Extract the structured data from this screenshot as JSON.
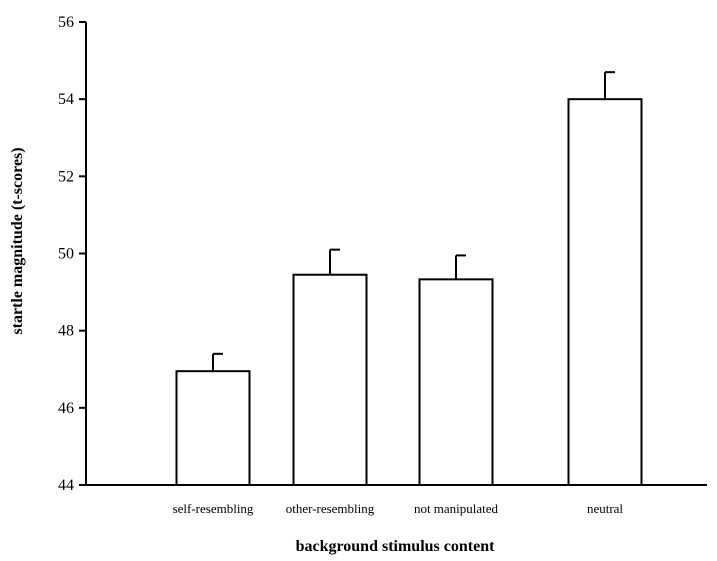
{
  "chart_data": {
    "type": "bar",
    "title": "",
    "xlabel": "background stimulus content",
    "ylabel": "startle magnitude (t-scores)",
    "categories": [
      "self-resembling",
      "other-resembling",
      "not manipulated",
      "neutral"
    ],
    "values": [
      46.95,
      49.45,
      49.33,
      54.0
    ],
    "error": [
      0.45,
      0.65,
      0.62,
      0.7
    ],
    "ylim": [
      44,
      56
    ],
    "yticks": [
      44,
      46,
      48,
      50,
      52,
      54,
      56
    ],
    "ytick_labels": [
      "44",
      "46",
      "48",
      "50",
      "52",
      "54",
      "56"
    ],
    "grid": false,
    "legend": "none",
    "colors": {
      "bar_fill": "#ffffff",
      "bar_stroke": "#000000",
      "axis": "#000000"
    }
  }
}
